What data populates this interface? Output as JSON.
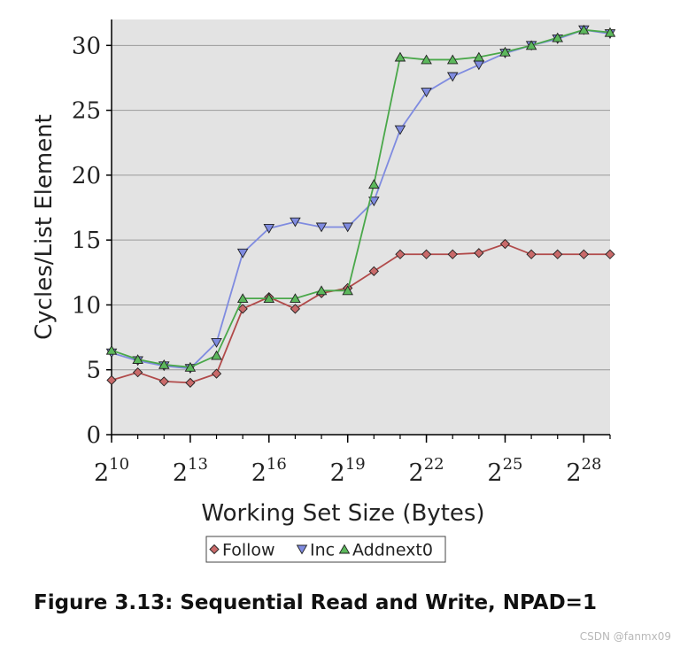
{
  "chart_data": {
    "type": "line",
    "ylabel": "Cycles/List Element",
    "xlabel": "Working Set Size (Bytes)",
    "x_exponents": [
      10,
      11,
      12,
      13,
      14,
      15,
      16,
      17,
      18,
      19,
      20,
      21,
      22,
      23,
      24,
      25,
      26,
      27,
      28,
      29
    ],
    "x_scale": "log2",
    "x_tick_exponents": [
      10,
      13,
      16,
      19,
      22,
      25,
      28
    ],
    "x_tick_base": "2",
    "x_tick_labels": [
      "10",
      "13",
      "16",
      "19",
      "22",
      "25",
      "28"
    ],
    "ylim": [
      0,
      32
    ],
    "y_ticks": [
      0,
      5,
      10,
      15,
      20,
      25,
      30
    ],
    "y_tick_labels": [
      "0",
      "5",
      "10",
      "15",
      "20",
      "25",
      "30"
    ],
    "grid": true,
    "legend_position": "bottom-center",
    "series": [
      {
        "name": "Follow",
        "color": "#b14a4a",
        "fill": "#c96a6a",
        "marker": "diamond",
        "values": [
          4.2,
          4.8,
          4.1,
          4.0,
          4.7,
          9.7,
          10.6,
          9.7,
          10.9,
          11.3,
          12.6,
          13.9,
          13.9,
          13.9,
          14.0,
          14.7,
          13.9,
          13.9,
          13.9,
          13.9
        ]
      },
      {
        "name": "Inc",
        "color": "#7f8be0",
        "fill": "#7f8be0",
        "marker": "triangle-down",
        "values": [
          6.3,
          5.7,
          5.3,
          5.1,
          7.1,
          14.0,
          15.9,
          16.4,
          16.0,
          16.0,
          18.0,
          23.5,
          26.4,
          27.6,
          28.5,
          29.4,
          30.0,
          30.5,
          31.2,
          30.9
        ]
      },
      {
        "name": "Addnext0",
        "color": "#4aa84a",
        "fill": "#5cb85c",
        "marker": "triangle-up",
        "values": [
          6.5,
          5.8,
          5.4,
          5.2,
          6.1,
          10.5,
          10.5,
          10.5,
          11.1,
          11.1,
          19.3,
          29.1,
          28.9,
          28.9,
          29.1,
          29.5,
          30.0,
          30.6,
          31.2,
          31.0
        ]
      }
    ]
  },
  "caption": "Figure 3.13: Sequential Read and Write, NPAD=1",
  "watermark": "CSDN @fanmx09"
}
